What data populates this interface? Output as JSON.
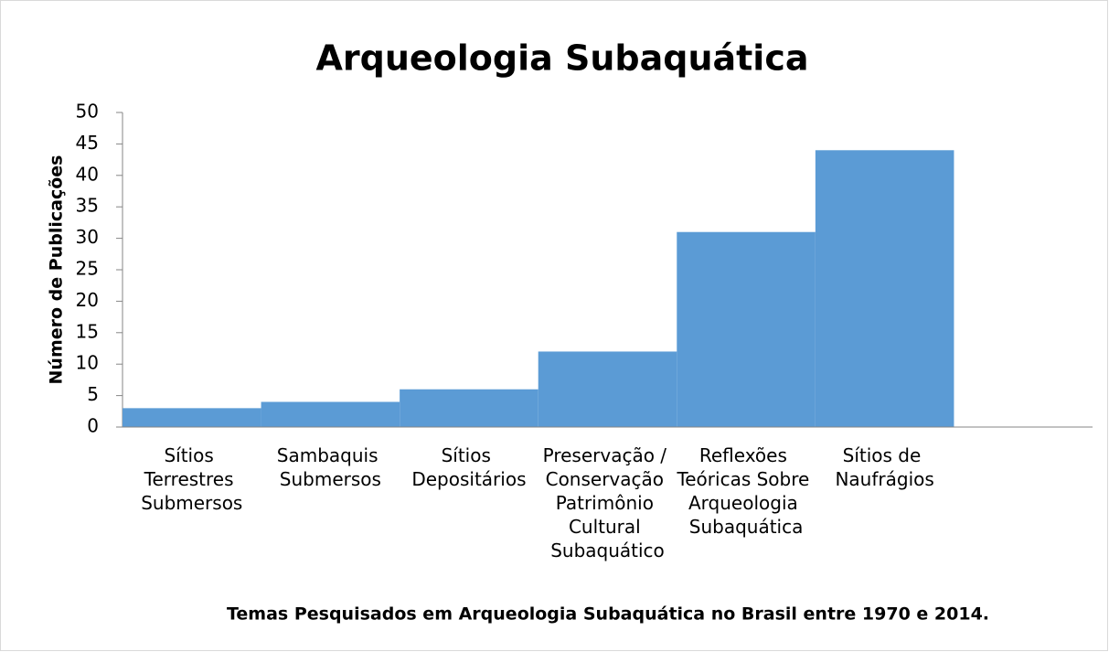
{
  "chart_data": {
    "type": "bar",
    "title": "Arqueologia Subaquática",
    "x_label": "Temas Pesquisados em Arqueologia Subaquática no Brasil entre 1970 e 2014.",
    "y_label": "Número de Publicações",
    "categories": [
      "Sítios Terrestres Submersos",
      "Sambaquis Submersos",
      "Sítios Depositários",
      "Preservação / Conservação Patrimônio Cultural Subaquático",
      "Reflexões Teóricas Sobre Arqueologia Subaquática",
      "Sítios de Naufrágios",
      null
    ],
    "values": [
      3,
      4,
      6,
      12,
      31,
      44,
      null
    ],
    "color": "#5b9bd5",
    "ylim": [
      0,
      50
    ],
    "yticks": [
      0,
      5,
      10,
      15,
      20,
      25,
      30,
      35,
      40,
      45,
      50
    ],
    "grid": false
  }
}
